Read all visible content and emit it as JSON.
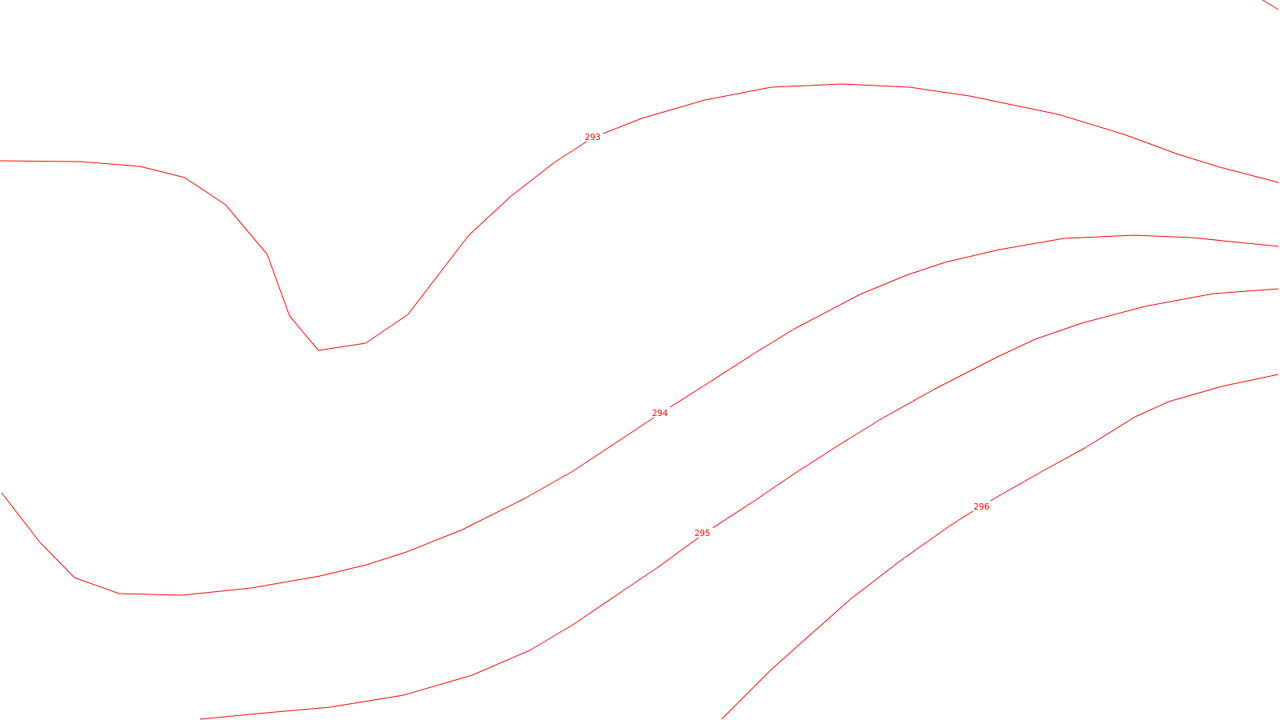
{
  "map": {
    "line_color": "#ff0000",
    "background_color": "#ffffff",
    "contour_labels": [
      "293",
      "294",
      "295",
      "296"
    ]
  }
}
